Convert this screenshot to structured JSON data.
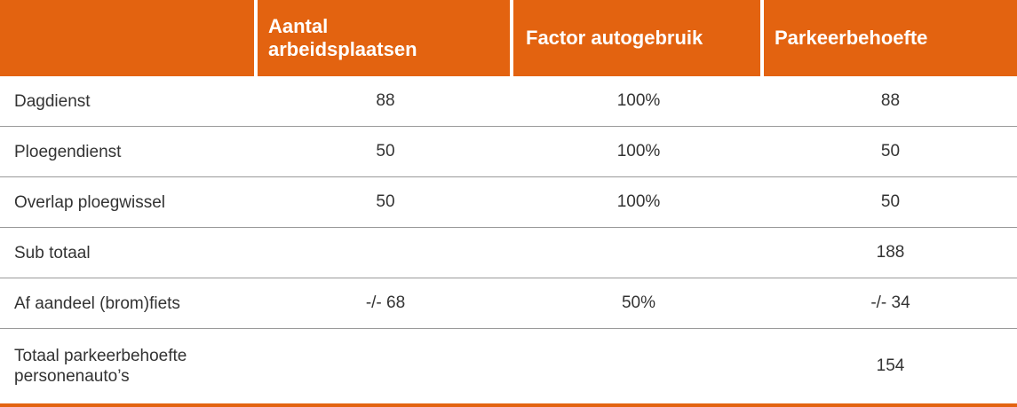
{
  "colors": {
    "header_bg": "#e36310",
    "header_text": "#ffffff",
    "body_text": "#333333",
    "divider": "#9a9a9a"
  },
  "header": {
    "col0": "",
    "col1_line1": "Aantal",
    "col1_line2": "arbeidsplaatsen",
    "col2": "Factor autogebruik",
    "col3": "Parkeerbehoefte"
  },
  "rows": [
    {
      "label": "Dagdienst",
      "arbeidsplaatsen": "88",
      "factor": "100%",
      "parkeerbehoefte": "88"
    },
    {
      "label": "Ploegendienst",
      "arbeidsplaatsen": "50",
      "factor": "100%",
      "parkeerbehoefte": "50"
    },
    {
      "label": "Overlap ploegwissel",
      "arbeidsplaatsen": "50",
      "factor": "100%",
      "parkeerbehoefte": "50"
    },
    {
      "label": "Sub totaal",
      "arbeidsplaatsen": "",
      "factor": "",
      "parkeerbehoefte": "188"
    },
    {
      "label": "Af aandeel (brom)fiets",
      "arbeidsplaatsen": "-/- 68",
      "factor": "50%",
      "parkeerbehoefte": "-/- 34"
    },
    {
      "label_line1": "Totaal parkeerbehoefte",
      "label_line2": "personenauto’s",
      "arbeidsplaatsen": "",
      "factor": "",
      "parkeerbehoefte": "154"
    }
  ]
}
